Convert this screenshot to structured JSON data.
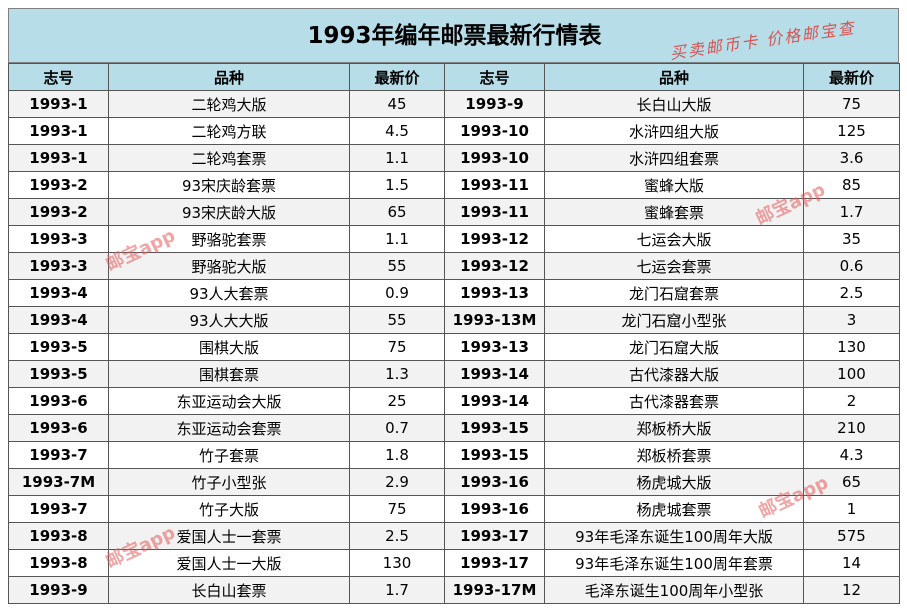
{
  "title": "1993年编年邮票最新行情表",
  "stamp_text": "买卖邮币卡 价格邮宝查",
  "watermark": "邮宝app",
  "headers": [
    "志号",
    "品种",
    "最新价",
    "志号",
    "品种",
    "最新价"
  ],
  "rows": [
    [
      "1993-1",
      "二轮鸡大版",
      "45",
      "1993-9",
      "长白山大版",
      "75"
    ],
    [
      "1993-1",
      "二轮鸡方联",
      "4.5",
      "1993-10",
      "水浒四组大版",
      "125"
    ],
    [
      "1993-1",
      "二轮鸡套票",
      "1.1",
      "1993-10",
      "水浒四组套票",
      "3.6"
    ],
    [
      "1993-2",
      "93宋庆龄套票",
      "1.5",
      "1993-11",
      "蜜蜂大版",
      "85"
    ],
    [
      "1993-2",
      "93宋庆龄大版",
      "65",
      "1993-11",
      "蜜蜂套票",
      "1.7"
    ],
    [
      "1993-3",
      "野骆驼套票",
      "1.1",
      "1993-12",
      "七运会大版",
      "35"
    ],
    [
      "1993-3",
      "野骆驼大版",
      "55",
      "1993-12",
      "七运会套票",
      "0.6"
    ],
    [
      "1993-4",
      "93人大套票",
      "0.9",
      "1993-13",
      "龙门石窟套票",
      "2.5"
    ],
    [
      "1993-4",
      "93人大大版",
      "55",
      "1993-13M",
      "龙门石窟小型张",
      "3"
    ],
    [
      "1993-5",
      "围棋大版",
      "75",
      "1993-13",
      "龙门石窟大版",
      "130"
    ],
    [
      "1993-5",
      "围棋套票",
      "1.3",
      "1993-14",
      "古代漆器大版",
      "100"
    ],
    [
      "1993-6",
      "东亚运动会大版",
      "25",
      "1993-14",
      "古代漆器套票",
      "2"
    ],
    [
      "1993-6",
      "东亚运动会套票",
      "0.7",
      "1993-15",
      "郑板桥大版",
      "210"
    ],
    [
      "1993-7",
      "竹子套票",
      "1.8",
      "1993-15",
      "郑板桥套票",
      "4.3"
    ],
    [
      "1993-7M",
      "竹子小型张",
      "2.9",
      "1993-16",
      "杨虎城大版",
      "65"
    ],
    [
      "1993-7",
      "竹子大版",
      "75",
      "1993-16",
      "杨虎城套票",
      "1"
    ],
    [
      "1993-8",
      "爱国人士一套票",
      "2.5",
      "1993-17",
      "93年毛泽东诞生100周年大版",
      "575"
    ],
    [
      "1993-8",
      "爱国人士一大版",
      "130",
      "1993-17",
      "93年毛泽东诞生100周年套票",
      "14"
    ],
    [
      "1993-9",
      "长白山套票",
      "1.7",
      "1993-17M",
      "毛泽东诞生100周年小型张",
      "12"
    ]
  ]
}
